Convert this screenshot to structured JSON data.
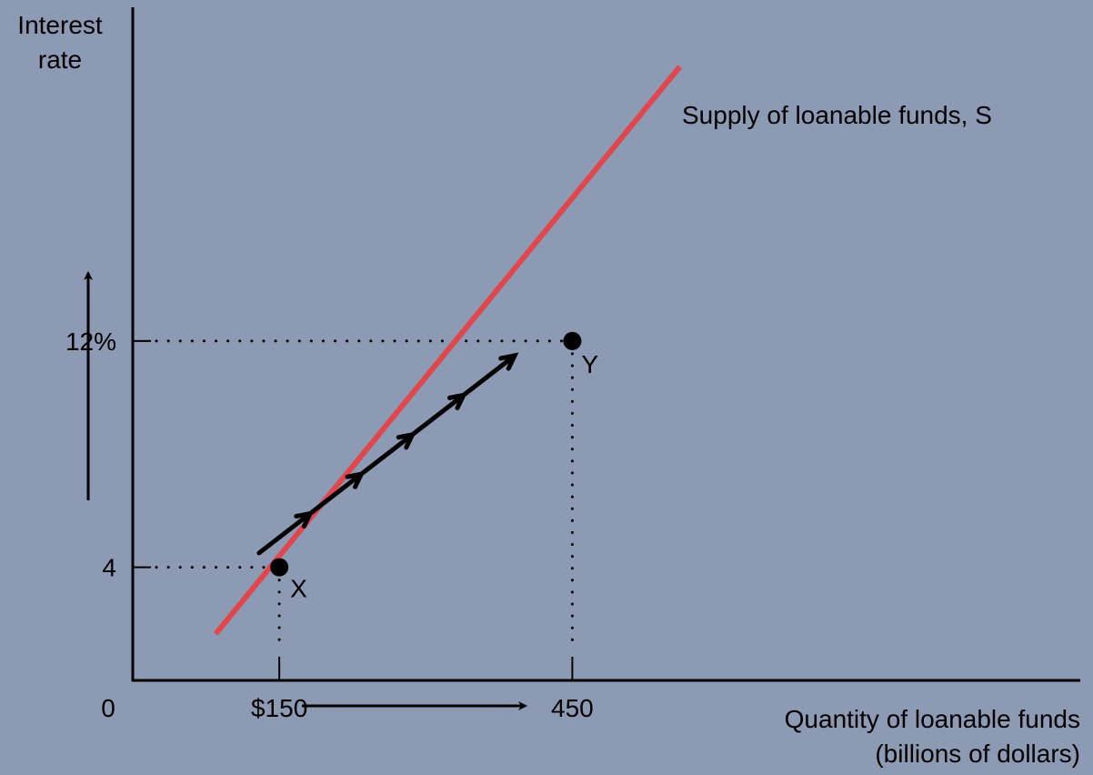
{
  "colors": {
    "background": "#8d9ab4",
    "supply_line": "#e0474c",
    "ink": "#000000"
  },
  "chart_data": {
    "type": "line",
    "xlabel_line1": "Quantity of loanable funds",
    "xlabel_line2": "(billions of dollars)",
    "ylabel_line1": "Interest",
    "ylabel_line2": "rate",
    "origin_label": "0",
    "x_ticks": [
      {
        "value": 150,
        "label": "$150"
      },
      {
        "value": 450,
        "label": "450"
      }
    ],
    "y_ticks": [
      {
        "value": 4,
        "label": "4"
      },
      {
        "value": 12,
        "label": "12%"
      }
    ],
    "xlim": [
      0,
      970
    ],
    "ylim": [
      0,
      23.8
    ],
    "series": [
      {
        "name": "Supply of loanable funds, S",
        "x": [
          85,
          560
        ],
        "y": [
          1.65,
          21.7
        ]
      }
    ],
    "points": [
      {
        "label": "X",
        "x": 150,
        "y": 4
      },
      {
        "label": "Y",
        "x": 450,
        "y": 12
      }
    ],
    "movement_arrow": {
      "from": {
        "x": 150,
        "y": 4
      },
      "to": {
        "x": 450,
        "y": 12
      }
    },
    "grid": false,
    "legend": "none"
  }
}
